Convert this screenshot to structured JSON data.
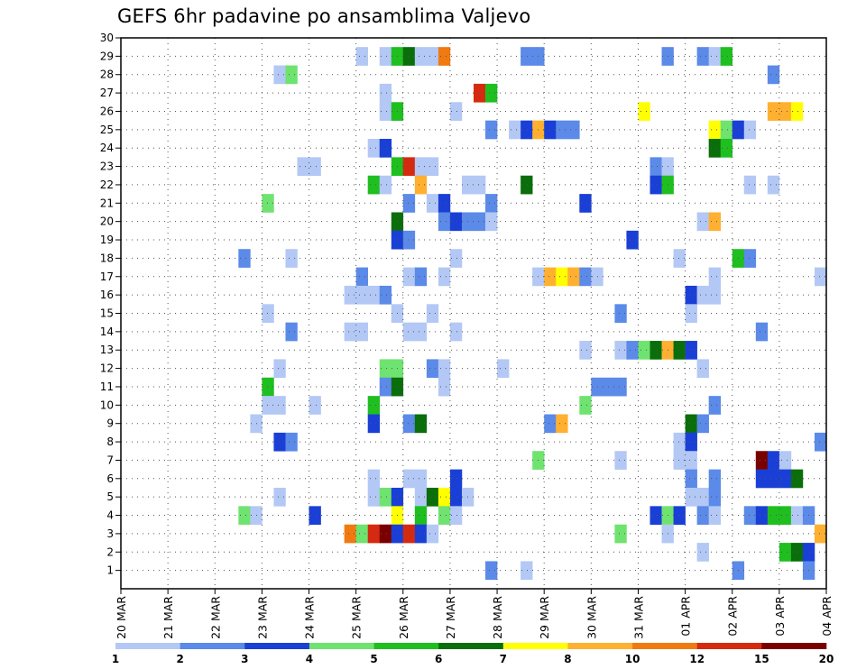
{
  "title": "GEFS 6hr padavine po ansamblima Valjevo",
  "chart_data": {
    "type": "heatmap",
    "title": "GEFS 6hr padavine po ansamblima Valjevo",
    "x_steps": 60,
    "y_range": [
      0,
      30
    ],
    "y_ticks": [
      1,
      2,
      3,
      4,
      5,
      6,
      7,
      8,
      9,
      10,
      11,
      12,
      13,
      14,
      15,
      16,
      17,
      18,
      19,
      20,
      21,
      22,
      23,
      24,
      25,
      26,
      27,
      28,
      29,
      30
    ],
    "x_ticks": [
      "20 MAR",
      "21 MAR",
      "22 MAR",
      "23 MAR",
      "24 MAR",
      "25 MAR",
      "26 MAR",
      "27 MAR",
      "28 MAR",
      "29 MAR",
      "30 MAR",
      "31 MAR",
      "01 APR",
      "02 APR",
      "03 APR",
      "04 APR"
    ],
    "grid": "dotted",
    "colorbar": {
      "labels": [
        "1",
        "2",
        "3",
        "4",
        "5",
        "6",
        "7",
        "8",
        "10",
        "12",
        "15",
        "20"
      ],
      "colors": [
        "#b3c8f5",
        "#5b8ae8",
        "#1a3fd6",
        "#6fe36f",
        "#1fbf1f",
        "#0a6e0a",
        "#ffff00",
        "#ffb030",
        "#f07a10",
        "#d62a10",
        "#7a0000"
      ]
    },
    "levels": {
      "1": "#b3c8f5",
      "2": "#5b8ae8",
      "3": "#1a3fd6",
      "4": "#6fe36f",
      "5": "#1fbf1f",
      "6": "#0a6e0a",
      "7": "#ffff00",
      "8": "#ffb030",
      "9": "#f07a10",
      "10": "#d62a10",
      "11": "#7a0000"
    },
    "cells": [
      [
        29,
        20,
        1
      ],
      [
        29,
        22,
        1
      ],
      [
        29,
        23,
        5
      ],
      [
        29,
        24,
        6
      ],
      [
        29,
        25,
        1
      ],
      [
        29,
        26,
        1
      ],
      [
        29,
        27,
        9
      ],
      [
        29,
        34,
        2
      ],
      [
        29,
        35,
        2
      ],
      [
        29,
        46,
        2
      ],
      [
        29,
        49,
        2
      ],
      [
        29,
        50,
        1
      ],
      [
        29,
        51,
        5
      ],
      [
        28,
        13,
        1
      ],
      [
        28,
        14,
        4
      ],
      [
        28,
        55,
        2
      ],
      [
        27,
        22,
        1
      ],
      [
        27,
        30,
        10
      ],
      [
        27,
        31,
        5
      ],
      [
        26,
        22,
        1
      ],
      [
        26,
        23,
        5
      ],
      [
        26,
        28,
        1
      ],
      [
        26,
        44,
        7
      ],
      [
        26,
        55,
        8
      ],
      [
        26,
        56,
        8
      ],
      [
        26,
        57,
        7
      ],
      [
        25,
        31,
        2
      ],
      [
        25,
        33,
        1
      ],
      [
        25,
        34,
        3
      ],
      [
        25,
        35,
        8
      ],
      [
        25,
        36,
        3
      ],
      [
        25,
        37,
        2
      ],
      [
        25,
        38,
        2
      ],
      [
        25,
        50,
        7
      ],
      [
        25,
        51,
        4
      ],
      [
        25,
        52,
        3
      ],
      [
        25,
        53,
        1
      ],
      [
        24,
        21,
        1
      ],
      [
        24,
        22,
        3
      ],
      [
        24,
        50,
        6
      ],
      [
        24,
        51,
        5
      ],
      [
        23,
        15,
        1
      ],
      [
        23,
        16,
        1
      ],
      [
        23,
        23,
        5
      ],
      [
        23,
        24,
        10
      ],
      [
        23,
        25,
        1
      ],
      [
        23,
        26,
        1
      ],
      [
        23,
        45,
        2
      ],
      [
        23,
        46,
        1
      ],
      [
        22,
        21,
        5
      ],
      [
        22,
        22,
        1
      ],
      [
        22,
        25,
        8
      ],
      [
        22,
        29,
        1
      ],
      [
        22,
        30,
        1
      ],
      [
        22,
        34,
        6
      ],
      [
        22,
        45,
        3
      ],
      [
        22,
        46,
        5
      ],
      [
        22,
        53,
        1
      ],
      [
        22,
        55,
        1
      ],
      [
        21,
        12,
        4
      ],
      [
        21,
        24,
        2
      ],
      [
        21,
        26,
        1
      ],
      [
        21,
        27,
        3
      ],
      [
        21,
        31,
        2
      ],
      [
        21,
        39,
        3
      ],
      [
        20,
        23,
        6
      ],
      [
        20,
        27,
        2
      ],
      [
        20,
        28,
        3
      ],
      [
        20,
        29,
        2
      ],
      [
        20,
        30,
        2
      ],
      [
        20,
        31,
        1
      ],
      [
        20,
        49,
        1
      ],
      [
        20,
        50,
        8
      ],
      [
        19,
        23,
        3
      ],
      [
        19,
        24,
        2
      ],
      [
        19,
        43,
        3
      ],
      [
        18,
        10,
        2
      ],
      [
        18,
        14,
        1
      ],
      [
        18,
        28,
        1
      ],
      [
        18,
        47,
        1
      ],
      [
        18,
        52,
        5
      ],
      [
        18,
        53,
        2
      ],
      [
        17,
        20,
        2
      ],
      [
        17,
        24,
        1
      ],
      [
        17,
        25,
        2
      ],
      [
        17,
        27,
        1
      ],
      [
        17,
        35,
        1
      ],
      [
        17,
        36,
        8
      ],
      [
        17,
        37,
        7
      ],
      [
        17,
        38,
        8
      ],
      [
        17,
        39,
        2
      ],
      [
        17,
        40,
        1
      ],
      [
        17,
        50,
        1
      ],
      [
        17,
        59,
        1
      ],
      [
        16,
        19,
        1
      ],
      [
        16,
        20,
        1
      ],
      [
        16,
        21,
        1
      ],
      [
        16,
        22,
        2
      ],
      [
        16,
        48,
        3
      ],
      [
        16,
        49,
        1
      ],
      [
        16,
        50,
        1
      ],
      [
        15,
        12,
        1
      ],
      [
        15,
        23,
        1
      ],
      [
        15,
        26,
        1
      ],
      [
        15,
        42,
        2
      ],
      [
        15,
        48,
        1
      ],
      [
        14,
        14,
        2
      ],
      [
        14,
        19,
        1
      ],
      [
        14,
        20,
        1
      ],
      [
        14,
        24,
        1
      ],
      [
        14,
        25,
        1
      ],
      [
        14,
        28,
        1
      ],
      [
        14,
        54,
        2
      ],
      [
        13,
        39,
        1
      ],
      [
        13,
        42,
        1
      ],
      [
        13,
        43,
        2
      ],
      [
        13,
        44,
        4
      ],
      [
        13,
        45,
        6
      ],
      [
        13,
        46,
        8
      ],
      [
        13,
        47,
        6
      ],
      [
        13,
        48,
        3
      ],
      [
        12,
        13,
        1
      ],
      [
        12,
        22,
        4
      ],
      [
        12,
        23,
        4
      ],
      [
        12,
        26,
        2
      ],
      [
        12,
        27,
        1
      ],
      [
        12,
        32,
        1
      ],
      [
        12,
        49,
        1
      ],
      [
        11,
        12,
        5
      ],
      [
        11,
        22,
        2
      ],
      [
        11,
        23,
        6
      ],
      [
        11,
        27,
        1
      ],
      [
        11,
        40,
        2
      ],
      [
        11,
        41,
        2
      ],
      [
        11,
        42,
        2
      ],
      [
        10,
        12,
        1
      ],
      [
        10,
        13,
        1
      ],
      [
        10,
        16,
        1
      ],
      [
        10,
        21,
        5
      ],
      [
        10,
        39,
        4
      ],
      [
        10,
        50,
        2
      ],
      [
        9,
        11,
        1
      ],
      [
        9,
        21,
        3
      ],
      [
        9,
        24,
        2
      ],
      [
        9,
        25,
        6
      ],
      [
        9,
        36,
        2
      ],
      [
        9,
        37,
        8
      ],
      [
        9,
        48,
        6
      ],
      [
        9,
        49,
        2
      ],
      [
        8,
        13,
        3
      ],
      [
        8,
        14,
        2
      ],
      [
        8,
        47,
        1
      ],
      [
        8,
        48,
        3
      ],
      [
        8,
        59,
        2
      ],
      [
        7,
        35,
        4
      ],
      [
        7,
        42,
        1
      ],
      [
        7,
        47,
        1
      ],
      [
        7,
        48,
        1
      ],
      [
        7,
        54,
        11
      ],
      [
        7,
        55,
        3
      ],
      [
        7,
        56,
        1
      ],
      [
        6,
        21,
        1
      ],
      [
        6,
        24,
        1
      ],
      [
        6,
        25,
        1
      ],
      [
        6,
        28,
        3
      ],
      [
        6,
        48,
        2
      ],
      [
        6,
        50,
        2
      ],
      [
        6,
        54,
        3
      ],
      [
        6,
        55,
        3
      ],
      [
        6,
        56,
        3
      ],
      [
        6,
        57,
        6
      ],
      [
        5,
        13,
        1
      ],
      [
        5,
        21,
        1
      ],
      [
        5,
        22,
        4
      ],
      [
        5,
        23,
        3
      ],
      [
        5,
        25,
        1
      ],
      [
        5,
        26,
        6
      ],
      [
        5,
        27,
        7
      ],
      [
        5,
        28,
        3
      ],
      [
        5,
        29,
        1
      ],
      [
        5,
        48,
        1
      ],
      [
        5,
        49,
        1
      ],
      [
        5,
        50,
        2
      ],
      [
        4,
        10,
        4
      ],
      [
        4,
        11,
        1
      ],
      [
        4,
        16,
        3
      ],
      [
        4,
        23,
        7
      ],
      [
        4,
        25,
        5
      ],
      [
        4,
        27,
        4
      ],
      [
        4,
        28,
        1
      ],
      [
        4,
        45,
        3
      ],
      [
        4,
        46,
        4
      ],
      [
        4,
        47,
        3
      ],
      [
        4,
        49,
        2
      ],
      [
        4,
        50,
        1
      ],
      [
        4,
        53,
        2
      ],
      [
        4,
        54,
        3
      ],
      [
        4,
        55,
        5
      ],
      [
        4,
        56,
        5
      ],
      [
        4,
        57,
        1
      ],
      [
        4,
        58,
        2
      ],
      [
        3,
        19,
        9
      ],
      [
        3,
        20,
        4
      ],
      [
        3,
        21,
        10
      ],
      [
        3,
        22,
        11
      ],
      [
        3,
        23,
        3
      ],
      [
        3,
        24,
        10
      ],
      [
        3,
        25,
        3
      ],
      [
        3,
        26,
        1
      ],
      [
        3,
        42,
        4
      ],
      [
        3,
        46,
        1
      ],
      [
        3,
        59,
        8
      ],
      [
        2,
        49,
        1
      ],
      [
        2,
        56,
        5
      ],
      [
        2,
        57,
        6
      ],
      [
        2,
        58,
        3
      ],
      [
        1,
        31,
        2
      ],
      [
        1,
        34,
        1
      ],
      [
        1,
        52,
        2
      ],
      [
        1,
        58,
        2
      ]
    ]
  }
}
